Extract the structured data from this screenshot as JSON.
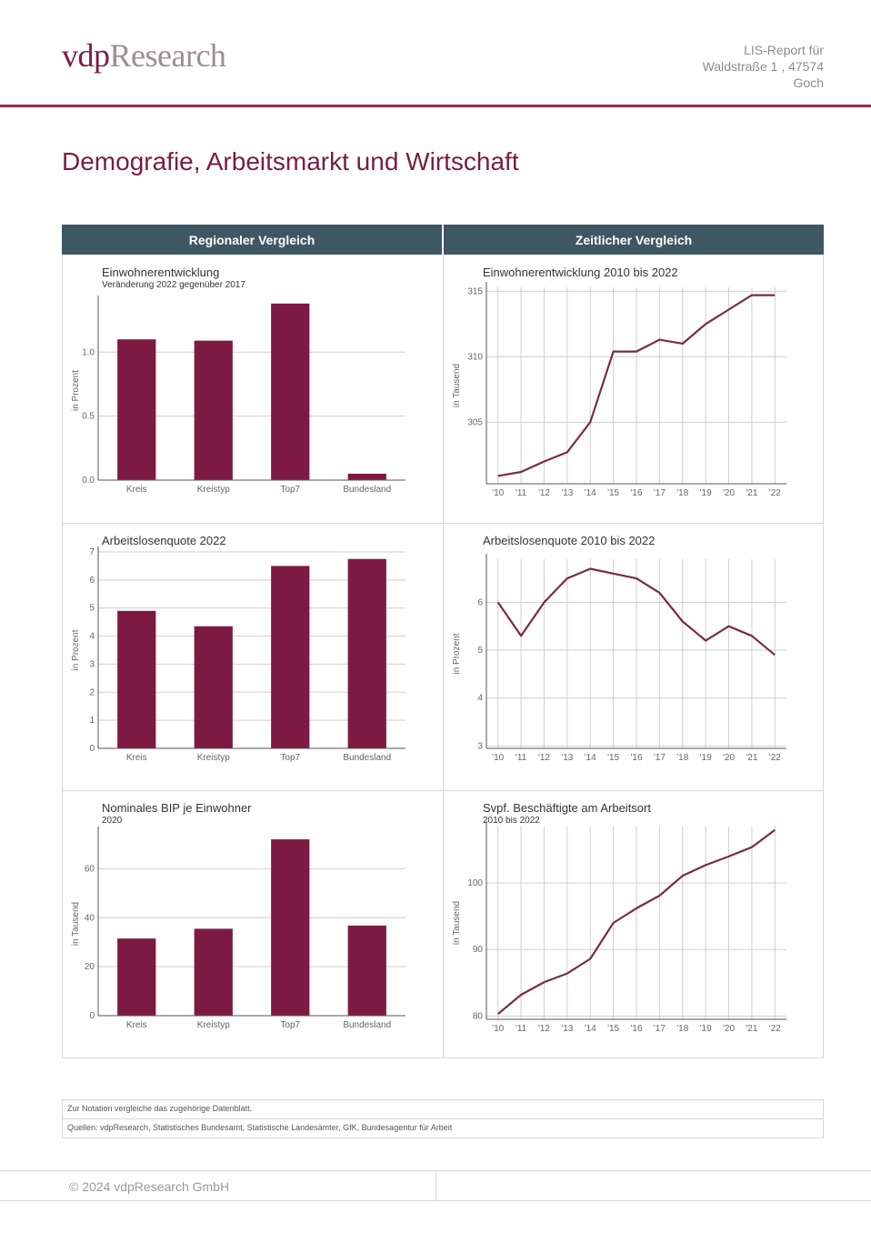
{
  "header": {
    "logo_brand": "vdp",
    "logo_suffix": "Research",
    "report_line1": "LIS-Report für",
    "report_line2": "Waldstraße 1 , 47574",
    "report_line3": "Goch"
  },
  "page_title": "Demografie, Arbeitsmarkt und Wirtschaft",
  "columns": {
    "left": "Regionaler Vergleich",
    "right": "Zeitlicher Vergleich"
  },
  "colors": {
    "bar": "#7d1a42",
    "line": "#7a2a4a",
    "header_bg": "#3f5663",
    "accent": "#a3264f"
  },
  "chart_data": [
    {
      "id": "c1",
      "type": "bar",
      "title": "Einwohnerentwicklung",
      "subtitle": "Veränderung 2022 gegenüber 2017",
      "ylabel": "in Prozent",
      "categories": [
        "Kreis",
        "Kreistyp",
        "Top7",
        "Bundesland"
      ],
      "values": [
        1.1,
        1.09,
        1.38,
        0.05
      ],
      "ylim": [
        0,
        1.4
      ],
      "yticks": [
        0.0,
        0.5,
        1.0
      ],
      "ytick_labels": [
        "0.0",
        "0.5",
        "1.0"
      ]
    },
    {
      "id": "c2",
      "type": "line",
      "title": "Einwohnerentwicklung 2010 bis 2022",
      "subtitle": "",
      "ylabel": "in Tausend",
      "categories": [
        "'10",
        "'11",
        "'12",
        "'13",
        "'14",
        "'15",
        "'16",
        "'17",
        "'18",
        "'19",
        "'20",
        "'21",
        "'22"
      ],
      "values": [
        300.9,
        301.2,
        302.0,
        302.7,
        305.0,
        310.4,
        310.4,
        311.3,
        311.0,
        312.5,
        313.6,
        314.7,
        314.7
      ],
      "ylim": [
        300.3,
        315.3
      ],
      "yticks": [
        305,
        310,
        315
      ],
      "ytick_labels": [
        "305",
        "310",
        "315"
      ]
    },
    {
      "id": "c3",
      "type": "bar",
      "title": "Arbeitslosenquote 2022",
      "subtitle": "",
      "ylabel": "in Prozent",
      "categories": [
        "Kreis",
        "Kreistyp",
        "Top7",
        "Bundesland"
      ],
      "values": [
        4.9,
        4.35,
        6.5,
        6.75
      ],
      "ylim": [
        0,
        7
      ],
      "yticks": [
        0,
        1,
        2,
        3,
        4,
        5,
        6,
        7
      ],
      "ytick_labels": [
        "0",
        "1",
        "2",
        "3",
        "4",
        "5",
        "6",
        "7"
      ]
    },
    {
      "id": "c4",
      "type": "line",
      "title": "Arbeitslosenquote 2010 bis 2022",
      "subtitle": "",
      "ylabel": "in Prozent",
      "categories": [
        "'10",
        "'11",
        "'12",
        "'13",
        "'14",
        "'15",
        "'16",
        "'17",
        "'18",
        "'19",
        "'20",
        "'21",
        "'22"
      ],
      "values": [
        6.0,
        5.3,
        6.0,
        6.5,
        6.7,
        6.6,
        6.5,
        6.2,
        5.6,
        5.2,
        5.5,
        5.3,
        4.9
      ],
      "ylim": [
        2.95,
        6.9
      ],
      "yticks": [
        3,
        4,
        5,
        6
      ],
      "ytick_labels": [
        "3",
        "4",
        "5",
        "6"
      ]
    },
    {
      "id": "c5",
      "type": "bar",
      "title": "Nominales BIP je Einwohner",
      "subtitle": "2020",
      "ylabel": "in Tausend",
      "categories": [
        "Kreis",
        "Kreistyp",
        "Top7",
        "Bundesland"
      ],
      "values": [
        31.5,
        35.5,
        72.0,
        36.8
      ],
      "ylim": [
        0,
        75
      ],
      "yticks": [
        0,
        20,
        40,
        60
      ],
      "ytick_labels": [
        "0",
        "20",
        "40",
        "60"
      ]
    },
    {
      "id": "c6",
      "type": "line",
      "title": "Svpf. Beschäftigte am Arbeitsort",
      "subtitle": "2010 bis 2022",
      "ylabel": "in Tausend",
      "categories": [
        "'10",
        "'11",
        "'12",
        "'13",
        "'14",
        "'15",
        "'16",
        "'17",
        "'18",
        "'19",
        "'20",
        "'21",
        "'22"
      ],
      "values": [
        80.3,
        83.2,
        85.1,
        86.4,
        88.6,
        94.0,
        96.2,
        98.1,
        101.1,
        102.7,
        104.0,
        105.4,
        108.0
      ],
      "ylim": [
        79.5,
        108.5
      ],
      "yticks": [
        80,
        90,
        100
      ],
      "ytick_labels": [
        "80",
        "90",
        "100"
      ]
    }
  ],
  "notes": {
    "notation": "Zur Notation vergleiche das zugehörige Datenblatt.",
    "sources": "Quellen: vdpResearch, Statistisches Bundesamt, Statistische Landesämter, GfK, Bundesagentur für Arbeit"
  },
  "footer": {
    "copyright": "© 2024 vdpResearch GmbH"
  }
}
